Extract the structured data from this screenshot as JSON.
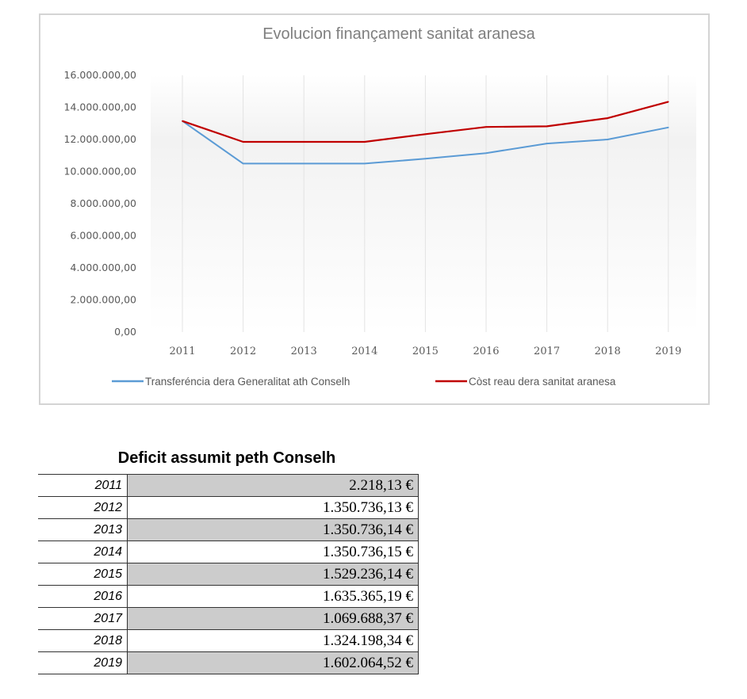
{
  "chart_data": {
    "type": "line",
    "title": "Evolucion  finançament  sanitat  aranesa",
    "xlabel": "",
    "ylabel": "",
    "categories": [
      "2011",
      "2012",
      "2013",
      "2014",
      "2015",
      "2016",
      "2017",
      "2018",
      "2019"
    ],
    "ylim": [
      0,
      16000000
    ],
    "yticks": [
      "0,00",
      "2.000.000,00",
      "4.000.000,00",
      "6.000.000,00",
      "8.000.000,00",
      "10.000.000,00",
      "12.000.000,00",
      "14.000.000,00",
      "16.000.000,00"
    ],
    "grid": "vertical",
    "legend": "bottom",
    "series": [
      {
        "name": "Transferéncia dera Generalitat ath Conselh",
        "color": "#5b9bd5",
        "values": [
          13150000,
          10500000,
          10500000,
          10500000,
          10800000,
          11150000,
          11750000,
          12000000,
          12750000
        ]
      },
      {
        "name": "Còst reau dera sanitat aranesa",
        "color": "#c00000",
        "values": [
          13150000,
          11850000,
          11850000,
          11850000,
          12330000,
          12780000,
          12820000,
          13330000,
          14350000
        ]
      }
    ]
  },
  "table": {
    "title": "Deficit assumit peth Conselh",
    "rows": [
      {
        "year": "2011",
        "amount": "2.218,13 €"
      },
      {
        "year": "2012",
        "amount": "1.350.736,13 €"
      },
      {
        "year": "2013",
        "amount": "1.350.736,14 €"
      },
      {
        "year": "2014",
        "amount": "1.350.736,15 €"
      },
      {
        "year": "2015",
        "amount": "1.529.236,14 €"
      },
      {
        "year": "2016",
        "amount": "1.635.365,19 €"
      },
      {
        "year": "2017",
        "amount": "1.069.688,37 €"
      },
      {
        "year": "2018",
        "amount": "1.324.198,34 €"
      },
      {
        "year": "2019",
        "amount": "1.602.064,52 €"
      }
    ]
  }
}
